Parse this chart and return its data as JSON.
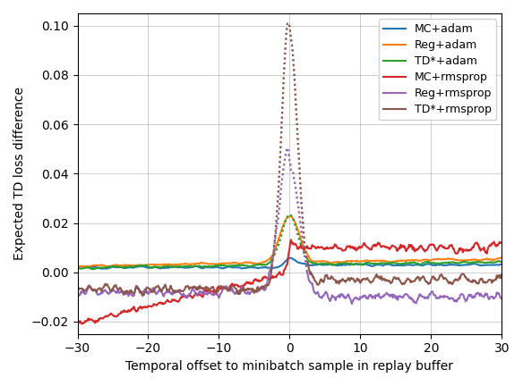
{
  "xlabel": "Temporal offset to minibatch sample in replay buffer",
  "ylabel": "Expected TD loss difference",
  "xlim": [
    -30,
    30
  ],
  "ylim": [
    -0.025,
    0.105
  ],
  "yticks": [
    -0.02,
    0.0,
    0.02,
    0.04,
    0.06,
    0.08,
    0.1
  ],
  "xticks": [
    -30,
    -20,
    -10,
    0,
    10,
    20,
    30
  ],
  "series": [
    {
      "label": "MC+adam",
      "color": "#1f77b4",
      "peak_dotted": false
    },
    {
      "label": "Reg+adam",
      "color": "#ff7f0e",
      "peak_dotted": false
    },
    {
      "label": "TD*+adam",
      "color": "#2ca02c",
      "peak_dotted": true
    },
    {
      "label": "MC+rmsprop",
      "color": "#d62728",
      "peak_dotted": false
    },
    {
      "label": "Reg+rmsprop",
      "color": "#9467bd",
      "peak_dotted": true
    },
    {
      "label": "TD*+rmsprop",
      "color": "#8c564b",
      "peak_dotted": true
    }
  ],
  "legend_loc": "upper right",
  "figsize": [
    5.84,
    4.32
  ],
  "dpi": 100
}
